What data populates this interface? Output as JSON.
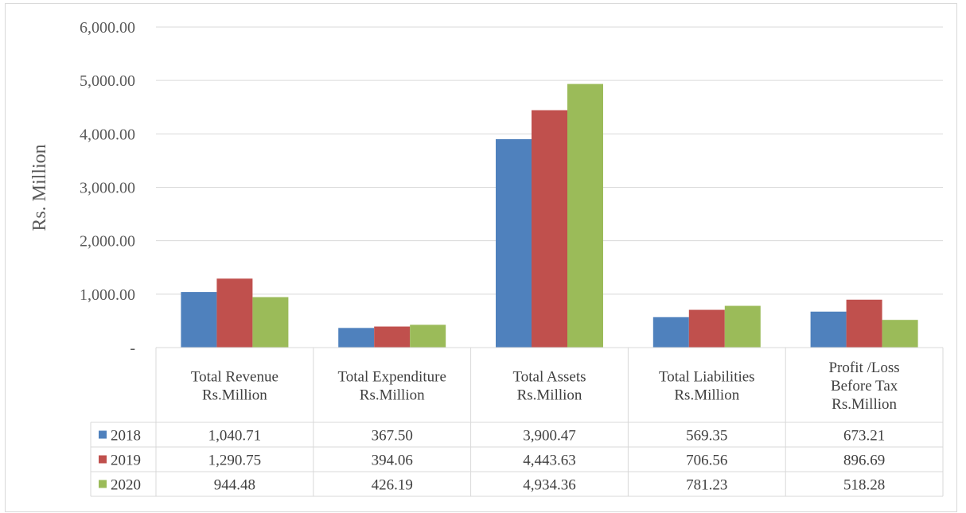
{
  "chart_data": {
    "type": "bar",
    "ylabel": "Rs. Million",
    "ylim": [
      0,
      6000
    ],
    "yticks": [
      "-",
      "1,000.00",
      "2,000.00",
      "3,000.00",
      "4,000.00",
      "5,000.00",
      "6,000.00"
    ],
    "grid": true,
    "categories": [
      [
        "Total Revenue",
        "Rs.Million"
      ],
      [
        "Total Expenditure",
        "Rs.Million"
      ],
      [
        "Total Assets",
        "Rs.Million"
      ],
      [
        "Total Liabilities",
        "Rs.Million"
      ],
      [
        "Profit /Loss",
        "Before Tax",
        "Rs.Million"
      ]
    ],
    "series": [
      {
        "name": "2018",
        "color": "#4f81bd",
        "values": [
          1040.71,
          367.5,
          3900.47,
          569.35,
          673.21
        ],
        "labels": [
          "1,040.71",
          "367.50",
          "3,900.47",
          "569.35",
          "673.21"
        ]
      },
      {
        "name": "2019",
        "color": "#c0504d",
        "values": [
          1290.75,
          394.06,
          4443.63,
          706.56,
          896.69
        ],
        "labels": [
          "1,290.75",
          "394.06",
          "4,443.63",
          "706.56",
          "896.69"
        ]
      },
      {
        "name": "2020",
        "color": "#9bbb59",
        "values": [
          944.48,
          426.19,
          4934.36,
          781.23,
          518.28
        ],
        "labels": [
          "944.48",
          "426.19",
          "4,934.36",
          "781.23",
          "518.28"
        ]
      }
    ]
  }
}
